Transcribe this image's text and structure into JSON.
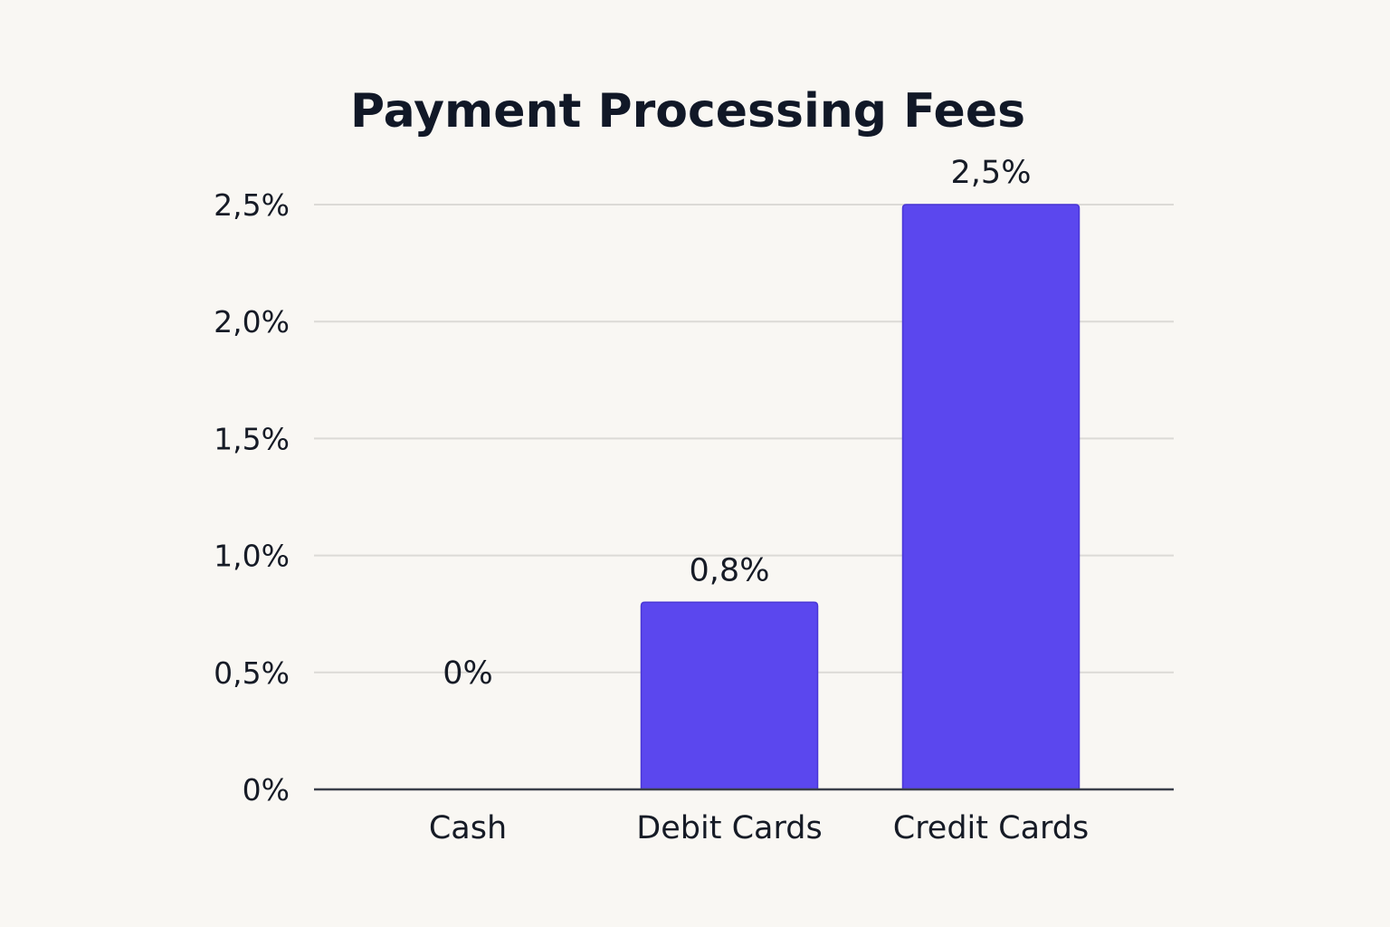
{
  "chart_data": {
    "type": "bar",
    "title": "Payment Processing Fees",
    "xlabel": "",
    "ylabel": "",
    "categories": [
      "Cash",
      "Debit Cards",
      "Credit Cards"
    ],
    "values": [
      0,
      0.8,
      2.5
    ],
    "data_labels": [
      "0%",
      "0,8%",
      "2,5%"
    ],
    "y_ticks": [
      0,
      0.5,
      1.0,
      1.5,
      2.0,
      2.5
    ],
    "y_tick_labels": [
      "0%",
      "0,5%",
      "1,0%",
      "1,5%",
      "2,0%",
      "2,5%"
    ],
    "ylim": [
      0,
      2.5
    ],
    "grid": true,
    "legend": "none",
    "bar_color": "#5b47ee",
    "bar_stroke_color": "#4a37d6"
  }
}
